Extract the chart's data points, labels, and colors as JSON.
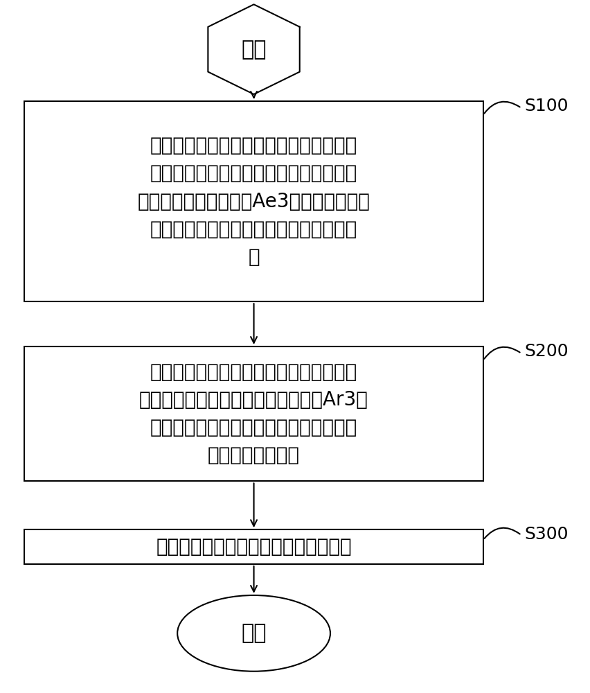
{
  "bg_color": "#ffffff",
  "border_color": "#000000",
  "text_color": "#000000",
  "start_label": "开始",
  "end_label": "结束",
  "step_labels": [
    "在铸坤出结晶之后至脱离弯曲段之前通过\n弱冷模式对铸坤角部的温度进行控制，使\n得铸坤角部温度不低于Ae3温度，即在平衡\n状态下时，奥氏体与铁素体共存的最高温\n度",
    "在进入矫直段之前，将所述弱冷模式转变\n为强冷模式，使得铸坤角部温度达到Ar3温\n度，即在铸坤冷却过程中，奥氏体开始向\n铁素体转变的温度",
    "进入矫直段后，继续采用所述强冷模式"
  ],
  "step_ids": [
    "S100",
    "S200",
    "S300"
  ],
  "font_size": 20,
  "label_font_size": 18,
  "line_color": "#000000",
  "arrow_color": "#000000",
  "lw": 1.5
}
